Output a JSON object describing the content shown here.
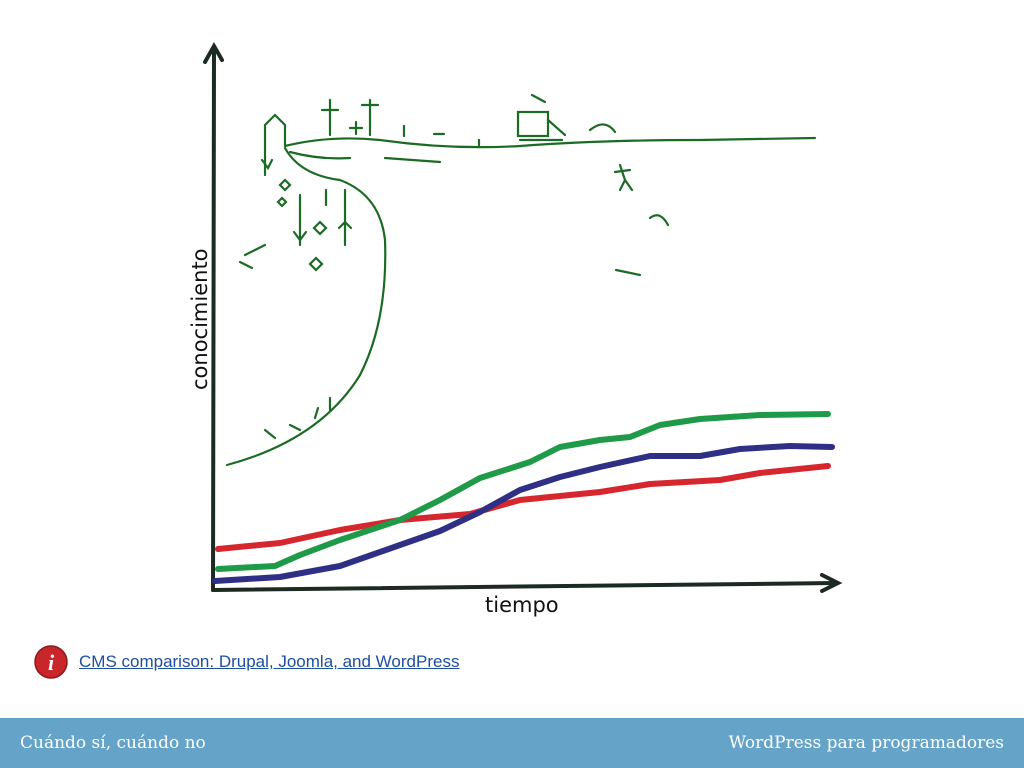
{
  "slide": {
    "figure": {
      "y_axis_label": "conocimiento",
      "x_axis_label": "tiempo"
    },
    "link": {
      "text": "CMS comparison: Drupal, Joomla, and WordPress"
    },
    "footer": {
      "left": "Cuándo sí, cuándo no",
      "right": "WordPress para programadores"
    }
  }
}
